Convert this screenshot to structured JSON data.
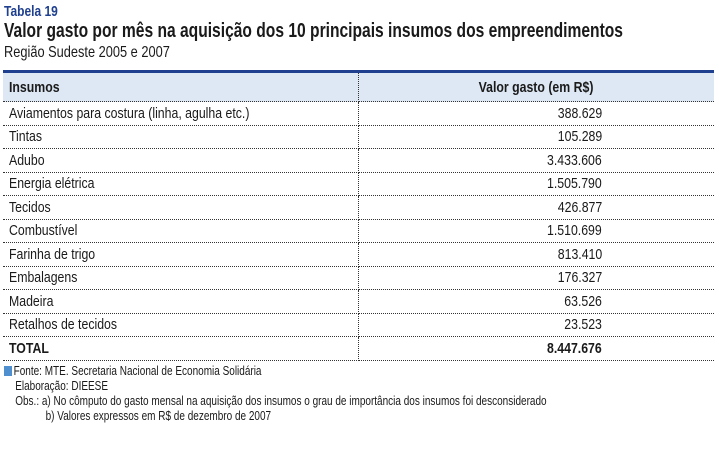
{
  "label": "Tabela 19",
  "title": "Valor gasto por mês na aquisição dos 10 principais insumos dos empreendimentos",
  "subtitle": "Região Sudeste 2005 e 2007",
  "table": {
    "headers": [
      "Insumos",
      "Valor gasto (em R$)"
    ],
    "rows": [
      [
        "Aviamentos para costura (linha, agulha etc.)",
        "388.629"
      ],
      [
        "Tintas",
        "105.289"
      ],
      [
        "Adubo",
        "3.433.606"
      ],
      [
        "Energia elétrica",
        "1.505.790"
      ],
      [
        "Tecidos",
        "426.877"
      ],
      [
        "Combustível",
        "1.510.699"
      ],
      [
        "Farinha de trigo",
        "813.410"
      ],
      [
        "Embalagens",
        "176.327"
      ],
      [
        "Madeira",
        "63.526"
      ],
      [
        "Retalhos de tecidos",
        "23.523"
      ]
    ],
    "total": [
      "TOTAL",
      "8.447.676"
    ]
  },
  "notes": {
    "source": "Fonte: MTE. Secretaria Nacional de Economia Solidária",
    "elaboration": "Elaboração: DIEESE",
    "obs_a": "Obs.: a) No cômputo do gasto mensal na aquisição dos insumos o grau de importância dos insumos foi desconsiderado",
    "obs_b": "b) Valores expressos em R$ de dezembro de 2007"
  },
  "colors": {
    "accent": "#1f3f8f",
    "header_bg": "#dde8f4",
    "marker": "#4f8fcf"
  }
}
